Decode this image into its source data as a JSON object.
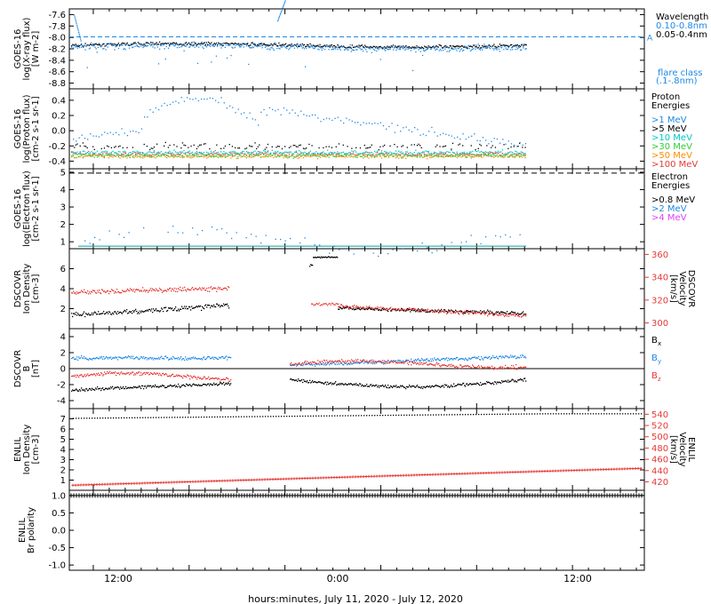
{
  "xlabel": "hours:minutes, July 11, 2020 - July 12, 2020",
  "x_ticks": [
    "12:00",
    "0:00",
    "12:00"
  ],
  "chart_data": [
    {
      "type": "scatter",
      "ylabel": [
        "GOES-16",
        "log(X-ray flux)",
        "[W m-2]"
      ],
      "ylim": [
        -8.9,
        -7.5
      ],
      "yticks": [
        "-7.6",
        "-7.8",
        "-8.0",
        "-8.2",
        "-8.4",
        "-8.6",
        "-8.8"
      ],
      "yvalues": [
        -7.6,
        -7.8,
        -8.0,
        -8.2,
        -8.4,
        -8.6,
        -8.8
      ],
      "legend_title": "Wavelength",
      "series": [
        {
          "name": "0.10-0.8nm",
          "color": "#1e88e5",
          "level": -8.15,
          "spread": 0.06
        },
        {
          "name": "0.05-0.4nm",
          "color": "#000000",
          "level": -8.13,
          "spread": 0.04
        }
      ],
      "reference_line": {
        "value": -7.99,
        "label": "A",
        "color": "#1e88e5",
        "dashed": true
      },
      "extra_labels": [
        "flare class",
        "(.1-.8nm)"
      ],
      "extra_color": "#1e88e5"
    },
    {
      "type": "scatter",
      "ylabel": [
        "GOES-16",
        "log(Proton flux)",
        "[cm-2 s-1 sr-1]"
      ],
      "ylim": [
        -0.5,
        0.55
      ],
      "yticks": [
        "0.4",
        "0.2",
        "0.0",
        "-0.2",
        "-0.4"
      ],
      "yvalues": [
        0.4,
        0.2,
        0.0,
        -0.2,
        -0.4
      ],
      "legend_title": "Proton Energies",
      "series": [
        {
          "name": ">1 MeV",
          "color": "#1e88e5"
        },
        {
          "name": ">5 MeV",
          "color": "#000000"
        },
        {
          "name": ">10 MeV",
          "color": "#00c8c8"
        },
        {
          "name": ">30 MeV",
          "color": "#33cc33"
        },
        {
          "name": ">50 MeV",
          "color": "#ff8c00"
        },
        {
          "name": ">100 MeV",
          "color": "#e53935"
        }
      ]
    },
    {
      "type": "scatter",
      "ylabel": [
        "GOES-16",
        "log(Electron flux)",
        "[cm-2 s-1 sr-1]"
      ],
      "ylim": [
        0.6,
        5.2
      ],
      "yticks": [
        "5",
        "4",
        "3",
        "2",
        "1"
      ],
      "yvalues": [
        5,
        4,
        3,
        2,
        1
      ],
      "legend_title": "Electron Energies",
      "series": [
        {
          "name": ">0.8 MeV",
          "color": "#000000",
          "level": 4.95
        },
        {
          "name": ">2 MeV",
          "color": "#1e88e5"
        },
        {
          "name": ">4 MeV",
          "color": "#e040fb"
        }
      ],
      "baseline": 0.75
    },
    {
      "type": "scatter",
      "ylabel": [
        "DSCOVR",
        "Ion Density",
        "[cm-3]"
      ],
      "ylim": [
        0,
        8
      ],
      "yticks": [
        "6",
        "4",
        "2"
      ],
      "yvalues": [
        6,
        4,
        2
      ],
      "y2label": [
        "DSCOVR",
        "Velocity",
        "[km/s]"
      ],
      "y2lim": [
        295,
        365
      ],
      "y2ticks": [
        "360",
        "340",
        "320",
        "300"
      ],
      "y2values": [
        360,
        340,
        320,
        300
      ],
      "series": [
        {
          "name": "density",
          "color": "#000000"
        },
        {
          "name": "velocity",
          "color": "#e53935"
        }
      ]
    },
    {
      "type": "scatter",
      "ylabel": [
        "DSCOVR",
        "B",
        "[nT]"
      ],
      "ylim": [
        -5,
        5
      ],
      "yticks": [
        "4",
        "2",
        "0",
        "-2",
        "-4"
      ],
      "yvalues": [
        4,
        2,
        0,
        -2,
        -4
      ],
      "series": [
        {
          "name": "Bx",
          "color": "#000000"
        },
        {
          "name": "By",
          "color": "#1e88e5"
        },
        {
          "name": "Bz",
          "color": "#e53935"
        }
      ]
    },
    {
      "type": "line",
      "ylabel": [
        "ENLIL",
        "Ion Density",
        "[cm-3]"
      ],
      "ylim": [
        0,
        8
      ],
      "yticks": [
        "7",
        "6",
        "5",
        "4",
        "3",
        "2",
        "1"
      ],
      "yvalues": [
        7,
        6,
        5,
        4,
        3,
        2,
        1
      ],
      "y2label": [
        "ENLIL",
        "Velocity",
        "[km/s]"
      ],
      "y2lim": [
        405,
        550
      ],
      "y2ticks": [
        "540",
        "520",
        "500",
        "480",
        "460",
        "440",
        "420"
      ],
      "y2values": [
        540,
        520,
        500,
        480,
        460,
        440,
        420
      ],
      "series": [
        {
          "name": "density",
          "color": "#000000",
          "start": 7.1,
          "end": 7.55
        },
        {
          "name": "velocity",
          "color": "#e53935",
          "start": 414,
          "end": 444
        }
      ]
    },
    {
      "type": "line",
      "ylabel": [
        "ENLIL",
        "Br polarity"
      ],
      "ylim": [
        -1.15,
        1.15
      ],
      "yticks": [
        "1.0",
        "0.5",
        "0.0",
        "-0.5",
        "-1.0"
      ],
      "yvalues": [
        1.0,
        0.5,
        0.0,
        -0.5,
        -1.0
      ],
      "series": [
        {
          "name": "polarity",
          "color": "#000000",
          "value": 1.0
        }
      ]
    }
  ]
}
